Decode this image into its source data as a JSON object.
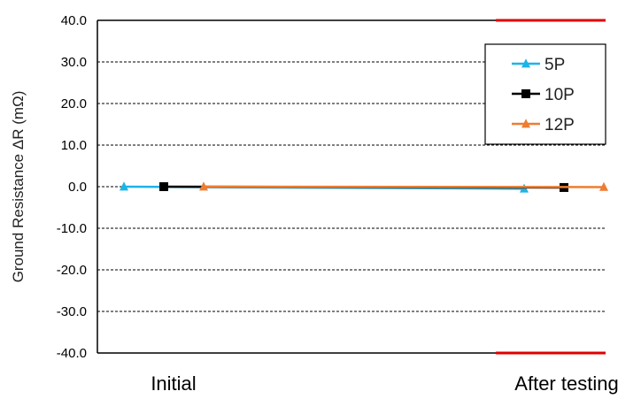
{
  "chart_data": {
    "type": "line",
    "title": "",
    "ylabel": "Ground Resistance ΔR (mΩ)",
    "xlabel": "",
    "categories": [
      "Initial",
      "After testing"
    ],
    "ylim": [
      -40.0,
      40.0
    ],
    "yticks": [
      "40.0",
      "30.0",
      "20.0",
      "10.0",
      "0.0",
      "-10.0",
      "-20.0",
      "-30.0",
      "-40.0"
    ],
    "grid": true,
    "legend_position": "top-right",
    "series": [
      {
        "name": "5P",
        "values": [
          0.0,
          -0.5
        ],
        "color": "#1CB4E8",
        "marker": "triangle"
      },
      {
        "name": "10P",
        "values": [
          0.0,
          -0.2
        ],
        "color": "#000000",
        "marker": "square"
      },
      {
        "name": "12P",
        "values": [
          0.0,
          -0.1
        ],
        "color": "#ED7D31",
        "marker": "triangle"
      }
    ],
    "limit_line_color": "#E00000"
  }
}
